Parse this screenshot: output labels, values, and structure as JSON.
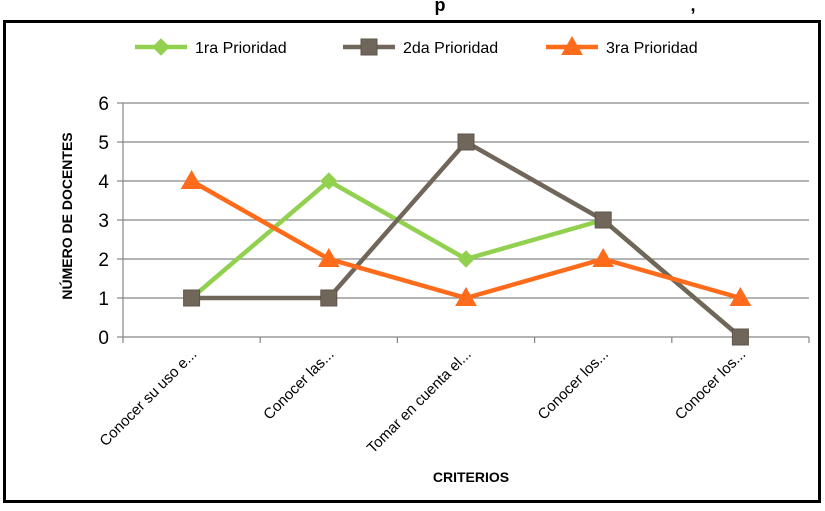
{
  "chart_data": {
    "type": "line",
    "title_fragment": "p",
    "title_fragment_right": ",",
    "xlabel": "CRITERIOS",
    "ylabel": "NÚMERO DE DOCENTES",
    "ylim": [
      0,
      6
    ],
    "yticks": [
      0,
      1,
      2,
      3,
      4,
      5,
      6
    ],
    "grid": true,
    "legend_position": "top",
    "categories": [
      "Conocer su uso e...",
      "Conocer las...",
      "Tomar en cuenta el...",
      "Conocer los...",
      "Conocer los..."
    ],
    "series": [
      {
        "name": "1ra Prioridad",
        "values": [
          1,
          4,
          2,
          3,
          0
        ],
        "color": "#92d050",
        "marker": "diamond"
      },
      {
        "name": "2da Prioridad",
        "values": [
          1,
          1,
          5,
          3,
          0
        ],
        "color": "#70675a",
        "marker": "square"
      },
      {
        "name": "3ra Prioridad",
        "values": [
          4,
          2,
          1,
          2,
          1
        ],
        "color": "#fe6b1a",
        "marker": "triangle"
      }
    ]
  }
}
